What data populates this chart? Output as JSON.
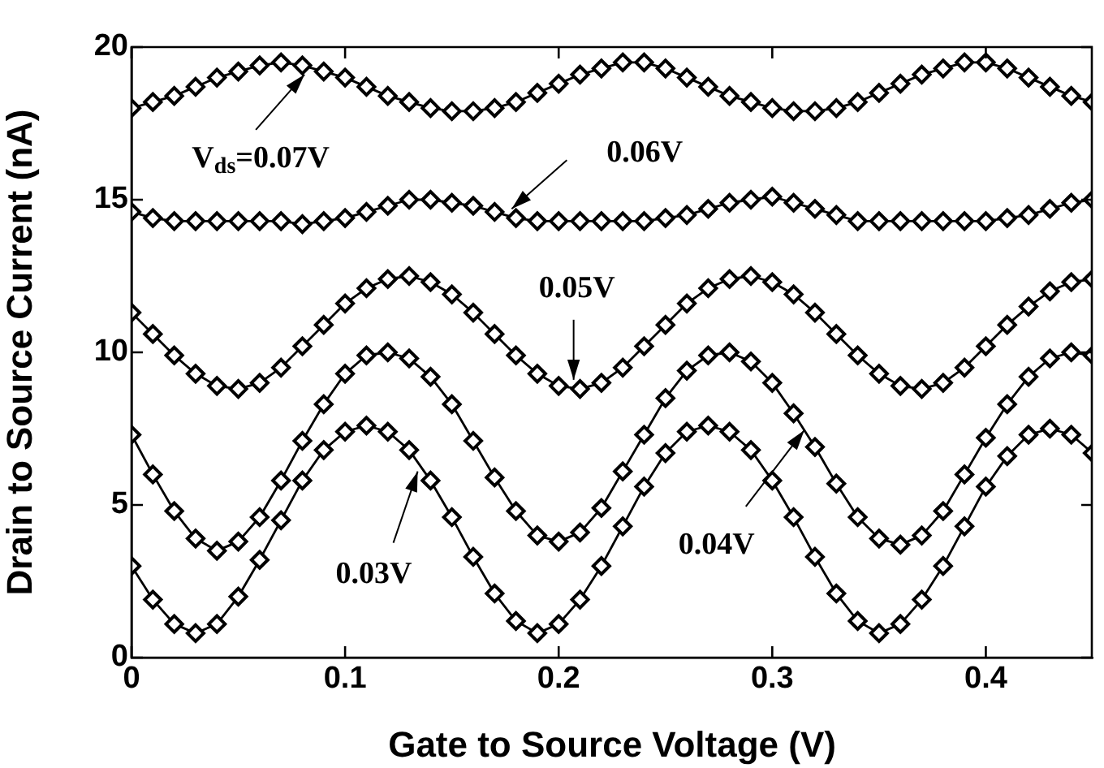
{
  "chart_data": {
    "type": "line",
    "xlabel": "Gate to Source Voltage (V)",
    "ylabel": "Drain to Source Current (nA)",
    "x": [
      0,
      0.01,
      0.02,
      0.03,
      0.04,
      0.05,
      0.06,
      0.07,
      0.08,
      0.09,
      0.1,
      0.11,
      0.12,
      0.13,
      0.14,
      0.15,
      0.16,
      0.17,
      0.18,
      0.19,
      0.2,
      0.21,
      0.22,
      0.23,
      0.24,
      0.25,
      0.26,
      0.27,
      0.28,
      0.29,
      0.3,
      0.31,
      0.32,
      0.33,
      0.34,
      0.35,
      0.36,
      0.37,
      0.38,
      0.39,
      0.4,
      0.41,
      0.42,
      0.43,
      0.44,
      0.45
    ],
    "series": [
      {
        "color": "#000000",
        "values": [
          3.0,
          1.9,
          1.1,
          0.8,
          1.1,
          2.0,
          3.2,
          4.5,
          5.8,
          6.8,
          7.4,
          7.6,
          7.4,
          6.8,
          5.8,
          4.6,
          3.3,
          2.1,
          1.2,
          0.8,
          1.1,
          1.9,
          3.0,
          4.3,
          5.6,
          6.7,
          7.4,
          7.6,
          7.4,
          6.8,
          5.8,
          4.6,
          3.3,
          2.1,
          1.2,
          0.8,
          1.1,
          1.9,
          3.0,
          4.3,
          5.6,
          6.6,
          7.3,
          7.5,
          7.3,
          6.7
        ]
      },
      {
        "color": "#000000",
        "values": [
          7.3,
          6.0,
          4.8,
          3.9,
          3.5,
          3.8,
          4.6,
          5.8,
          7.1,
          8.3,
          9.3,
          9.9,
          10.0,
          9.8,
          9.2,
          8.3,
          7.1,
          5.9,
          4.8,
          4.0,
          3.8,
          4.1,
          4.9,
          6.1,
          7.3,
          8.5,
          9.4,
          9.9,
          10.0,
          9.7,
          9.0,
          8.0,
          6.9,
          5.7,
          4.6,
          3.9,
          3.7,
          4.0,
          4.8,
          6.0,
          7.2,
          8.3,
          9.2,
          9.8,
          10.0,
          9.9
        ]
      },
      {
        "color": "#000000",
        "values": [
          11.3,
          10.6,
          9.9,
          9.3,
          8.9,
          8.8,
          9.0,
          9.5,
          10.2,
          10.9,
          11.6,
          12.1,
          12.4,
          12.5,
          12.3,
          11.9,
          11.3,
          10.6,
          9.9,
          9.3,
          8.9,
          8.8,
          9.0,
          9.5,
          10.2,
          10.9,
          11.6,
          12.1,
          12.4,
          12.5,
          12.3,
          11.9,
          11.3,
          10.6,
          9.9,
          9.3,
          8.9,
          8.8,
          9.0,
          9.5,
          10.2,
          10.9,
          11.5,
          12.0,
          12.3,
          12.4
        ]
      },
      {
        "color": "#000000",
        "values": [
          14.6,
          14.4,
          14.3,
          14.3,
          14.3,
          14.3,
          14.3,
          14.3,
          14.2,
          14.3,
          14.4,
          14.6,
          14.8,
          15.0,
          15.0,
          14.9,
          14.8,
          14.6,
          14.4,
          14.3,
          14.3,
          14.3,
          14.3,
          14.3,
          14.3,
          14.4,
          14.5,
          14.7,
          14.9,
          15.0,
          15.1,
          14.9,
          14.7,
          14.5,
          14.3,
          14.3,
          14.3,
          14.3,
          14.3,
          14.3,
          14.3,
          14.4,
          14.5,
          14.7,
          14.9,
          15.0
        ]
      },
      {
        "color": "#000000",
        "values": [
          18.0,
          18.2,
          18.4,
          18.7,
          19.0,
          19.2,
          19.4,
          19.5,
          19.4,
          19.2,
          19.0,
          18.7,
          18.4,
          18.2,
          18.0,
          17.9,
          17.9,
          18.0,
          18.2,
          18.5,
          18.8,
          19.1,
          19.3,
          19.5,
          19.5,
          19.3,
          19.0,
          18.7,
          18.4,
          18.2,
          18.0,
          17.9,
          17.9,
          18.0,
          18.2,
          18.5,
          18.8,
          19.1,
          19.3,
          19.5,
          19.5,
          19.3,
          19.0,
          18.7,
          18.4,
          18.2
        ]
      }
    ],
    "xlim": [
      0,
      0.45
    ],
    "xticks": [
      0,
      0.1,
      0.2,
      0.3,
      0.4
    ],
    "ylim": [
      0,
      20
    ],
    "yticks": [
      0,
      5,
      10,
      15,
      20
    ],
    "marker": "diamond",
    "line_style": "solid",
    "annotations": [
      {
        "text": "V$_{ds}$=0.07V",
        "x": 0.081,
        "y": 19.1
      },
      {
        "text": "0.06V",
        "x": 0.178,
        "y": 14.7
      },
      {
        "text": "0.05V",
        "x": 0.207,
        "y": 9.1
      },
      {
        "text": "0.03V",
        "x": 0.134,
        "y": 6.1
      },
      {
        "text": "0.04V",
        "x": 0.315,
        "y": 7.45
      }
    ]
  }
}
